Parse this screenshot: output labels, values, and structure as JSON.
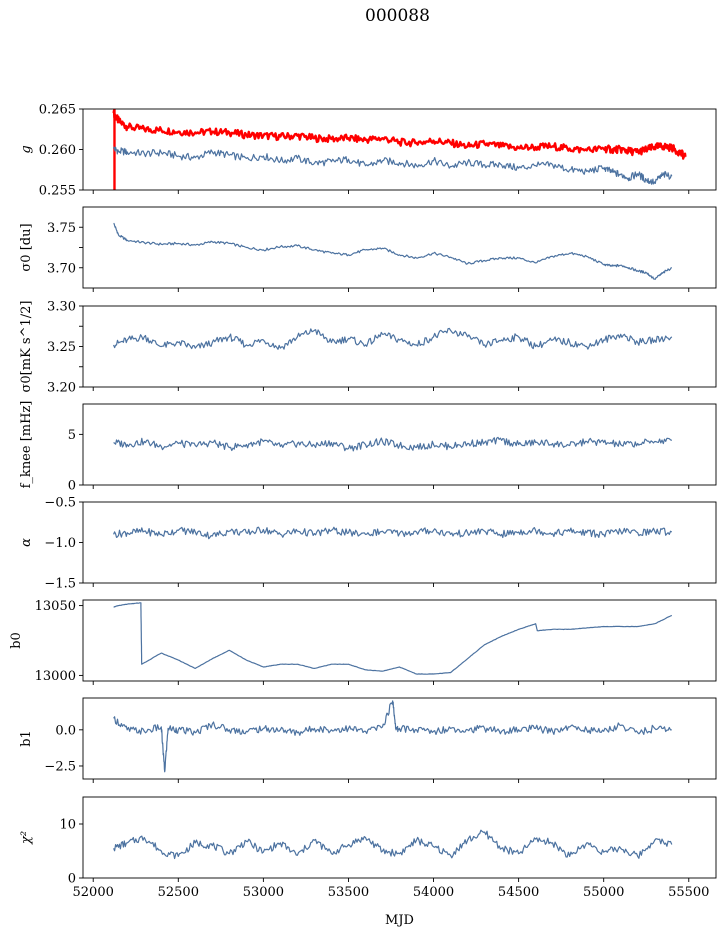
{
  "title": "000088",
  "colors": {
    "series": "#4c72a0",
    "highlight": "#ff0000",
    "axes": "#000000"
  },
  "chart_data": {
    "type": "line",
    "suptitle": "000088",
    "shared_x": {
      "label": "MJD",
      "lim": [
        51940,
        55660
      ],
      "ticks": [
        52000,
        52500,
        53000,
        53500,
        54000,
        54500,
        55000,
        55500
      ],
      "tick_labels": [
        "52000",
        "52500",
        "53000",
        "53500",
        "54000",
        "54500",
        "55000",
        "55500"
      ]
    },
    "panels": [
      {
        "id": "g",
        "ylabel": "g",
        "ylim": [
          0.255,
          0.265
        ],
        "yticks": [
          0.255,
          0.26,
          0.265
        ],
        "ytick_labels": [
          "0.255",
          "0.260",
          "0.265"
        ],
        "series": [
          {
            "color": "#ff0000",
            "x": [
              52120,
              52150,
              52200,
              52300,
              52400,
              52500,
              52600,
              52700,
              52800,
              52900,
              53000,
              53100,
              53200,
              53300,
              53400,
              53500,
              53600,
              53700,
              53800,
              53900,
              54000,
              54100,
              54200,
              54300,
              54400,
              54500,
              54600,
              54700,
              54800,
              54900,
              55000,
              55050,
              55100,
              55150,
              55200,
              55250,
              55300,
              55350,
              55400,
              55450,
              55480
            ],
            "y": [
              0.2645,
              0.2635,
              0.2628,
              0.2625,
              0.2624,
              0.2622,
              0.2621,
              0.2622,
              0.2621,
              0.2618,
              0.2617,
              0.2616,
              0.2617,
              0.2614,
              0.2613,
              0.2614,
              0.2612,
              0.2614,
              0.2609,
              0.2608,
              0.2611,
              0.2608,
              0.2604,
              0.2607,
              0.2604,
              0.2602,
              0.2603,
              0.2604,
              0.2601,
              0.2599,
              0.2601,
              0.26,
              0.26,
              0.2598,
              0.2597,
              0.26,
              0.2603,
              0.2604,
              0.2602,
              0.2596,
              0.2591
            ]
          },
          {
            "color": "#4c72a0",
            "x": [
              52120,
              52150,
              52200,
              52300,
              52400,
              52500,
              52600,
              52700,
              52800,
              52900,
              53000,
              53100,
              53200,
              53300,
              53400,
              53500,
              53600,
              53700,
              53800,
              53900,
              54000,
              54100,
              54200,
              54300,
              54400,
              54500,
              54600,
              54700,
              54800,
              54900,
              55000,
              55050,
              55100,
              55150,
              55200,
              55250,
              55300,
              55350,
              55400
            ],
            "y": [
              0.2601,
              0.2598,
              0.2597,
              0.2595,
              0.2596,
              0.2592,
              0.259,
              0.2597,
              0.2593,
              0.2589,
              0.2592,
              0.2586,
              0.2589,
              0.2583,
              0.2585,
              0.2588,
              0.258,
              0.2586,
              0.2584,
              0.258,
              0.2586,
              0.2579,
              0.2584,
              0.2581,
              0.2581,
              0.2577,
              0.258,
              0.2581,
              0.2575,
              0.2573,
              0.2577,
              0.2572,
              0.2569,
              0.2565,
              0.257,
              0.2562,
              0.256,
              0.2569,
              0.2567
            ]
          }
        ]
      },
      {
        "id": "sigma0_du",
        "ylabel": "σ0 [du]",
        "ylim": [
          3.675,
          3.775
        ],
        "yticks": [
          3.7,
          3.725,
          3.75
        ],
        "ytick_labels": [
          "3.70",
          "",
          "3.75"
        ],
        "series": [
          {
            "color": "#4c72a0",
            "x": [
              52120,
              52150,
              52200,
              52300,
              52400,
              52500,
              52600,
              52700,
              52800,
              52900,
              53000,
              53100,
              53200,
              53300,
              53400,
              53500,
              53600,
              53700,
              53800,
              53900,
              54000,
              54100,
              54200,
              54300,
              54400,
              54500,
              54600,
              54700,
              54800,
              54900,
              55000,
              55050,
              55100,
              55150,
              55200,
              55250,
              55300,
              55350,
              55400
            ],
            "y": [
              3.755,
              3.74,
              3.734,
              3.731,
              3.729,
              3.73,
              3.728,
              3.732,
              3.73,
              3.725,
              3.722,
              3.726,
              3.727,
              3.722,
              3.718,
              3.716,
              3.722,
              3.724,
              3.716,
              3.712,
              3.718,
              3.713,
              3.705,
              3.709,
              3.712,
              3.712,
              3.706,
              3.714,
              3.718,
              3.714,
              3.704,
              3.702,
              3.703,
              3.7,
              3.696,
              3.694,
              3.686,
              3.694,
              3.7
            ]
          }
        ]
      },
      {
        "id": "sigma0_mk",
        "ylabel": "σ0[mK s^1/2]",
        "ylim": [
          3.2,
          3.3
        ],
        "yticks": [
          3.2,
          3.225,
          3.25,
          3.275,
          3.3
        ],
        "ytick_labels": [
          "3.20",
          "",
          "3.25",
          "",
          "3.30"
        ],
        "series": [
          {
            "color": "#4c72a0",
            "x": [
              52120,
              52200,
              52300,
              52400,
              52500,
              52600,
              52700,
              52800,
              52900,
              53000,
              53100,
              53200,
              53300,
              53400,
              53500,
              53600,
              53700,
              53800,
              53900,
              54000,
              54100,
              54200,
              54300,
              54400,
              54500,
              54600,
              54700,
              54800,
              54900,
              55000,
              55100,
              55200,
              55300,
              55400
            ],
            "y": [
              3.252,
              3.258,
              3.262,
              3.25,
              3.255,
              3.248,
              3.255,
              3.262,
              3.252,
              3.258,
              3.248,
              3.262,
              3.27,
              3.255,
              3.26,
              3.252,
              3.265,
              3.258,
              3.252,
              3.262,
              3.27,
              3.262,
              3.252,
              3.258,
              3.262,
              3.25,
              3.258,
              3.255,
              3.25,
              3.258,
              3.265,
              3.255,
              3.258,
              3.262
            ]
          }
        ]
      },
      {
        "id": "fknee",
        "ylabel": "f_knee [mHz]",
        "ylim": [
          0,
          8
        ],
        "yticks": [
          0,
          5
        ],
        "ytick_labels": [
          "0",
          "5"
        ],
        "series": [
          {
            "color": "#4c72a0",
            "x": [
              52120,
              52200,
              52300,
              52400,
              52500,
              52600,
              52700,
              52800,
              52900,
              53000,
              53100,
              53200,
              53300,
              53400,
              53500,
              53600,
              53700,
              53800,
              53900,
              54000,
              54100,
              54200,
              54300,
              54400,
              54500,
              54600,
              54700,
              54800,
              54900,
              55000,
              55100,
              55200,
              55300,
              55400
            ],
            "y": [
              4.2,
              4.0,
              4.3,
              3.8,
              4.1,
              3.9,
              4.2,
              3.7,
              4.0,
              4.3,
              3.8,
              4.1,
              3.9,
              4.2,
              3.6,
              4.0,
              4.3,
              3.9,
              3.7,
              4.0,
              3.8,
              4.1,
              4.2,
              4.4,
              4.0,
              4.2,
              4.1,
              3.9,
              4.3,
              4.2,
              4.0,
              4.1,
              4.3,
              4.4
            ]
          }
        ]
      },
      {
        "id": "alpha",
        "ylabel": "α",
        "ylim": [
          -1.5,
          -0.5
        ],
        "yticks": [
          -1.5,
          -1.0,
          -0.5
        ],
        "ytick_labels": [
          "−1.5",
          "−1.0",
          "−0.5"
        ],
        "series": [
          {
            "color": "#4c72a0",
            "x": [
              52120,
              52200,
              52300,
              52400,
              52500,
              52600,
              52700,
              52800,
              52900,
              53000,
              53100,
              53200,
              53300,
              53400,
              53500,
              53600,
              53700,
              53800,
              53900,
              54000,
              54100,
              54200,
              54300,
              54400,
              54500,
              54600,
              54700,
              54800,
              54900,
              55000,
              55100,
              55200,
              55300,
              55400
            ],
            "y": [
              -0.9,
              -0.88,
              -0.86,
              -0.9,
              -0.85,
              -0.87,
              -0.92,
              -0.86,
              -0.88,
              -0.84,
              -0.9,
              -0.86,
              -0.89,
              -0.85,
              -0.88,
              -0.9,
              -0.86,
              -0.89,
              -0.87,
              -0.85,
              -0.9,
              -0.88,
              -0.86,
              -0.9,
              -0.87,
              -0.85,
              -0.89,
              -0.86,
              -0.88,
              -0.9,
              -0.86,
              -0.88,
              -0.86,
              -0.87
            ]
          }
        ]
      },
      {
        "id": "b0",
        "ylabel": "b0",
        "ylim": [
          12996,
          13054
        ],
        "yticks": [
          13000,
          13050
        ],
        "ytick_labels": [
          "13000",
          "13050"
        ],
        "series": [
          {
            "color": "#4c72a0",
            "x": [
              52120,
              52150,
              52200,
              52280,
              52285,
              52400,
              52500,
              52600,
              52700,
              52800,
              52900,
              53000,
              53100,
              53200,
              53300,
              53400,
              53500,
              53600,
              53700,
              53800,
              53900,
              54000,
              54100,
              54200,
              54300,
              54400,
              54500,
              54600,
              54610,
              54700,
              54800,
              54900,
              55000,
              55100,
              55200,
              55300,
              55400
            ],
            "y": [
              13049,
              13050,
              13051,
              13052,
              13008,
              13016,
              13011,
              13005,
              13012,
              13018,
              13011,
              13006,
              13008,
              13008,
              13005,
              13008,
              13008,
              13004,
              13003,
              13006,
              13001,
              13001,
              13002,
              13012,
              13022,
              13028,
              13033,
              13037,
              13032,
              13033,
              13033,
              13034,
              13035,
              13035,
              13035,
              13037,
              13043
            ]
          }
        ]
      },
      {
        "id": "b1",
        "ylabel": "b1",
        "ylim": [
          -3.4,
          2.2
        ],
        "yticks": [
          -2.5,
          0.0
        ],
        "ytick_labels": [
          "−2.5",
          "0.0"
        ],
        "series": [
          {
            "color": "#4c72a0",
            "x": [
              52120,
              52200,
              52300,
              52400,
              52420,
              52440,
              52500,
              52600,
              52700,
              52800,
              52900,
              53000,
              53100,
              53200,
              53300,
              53400,
              53500,
              53600,
              53700,
              53760,
              53780,
              53800,
              53900,
              54000,
              54100,
              54200,
              54300,
              54400,
              54500,
              54600,
              54700,
              54800,
              54900,
              55000,
              55100,
              55200,
              55300,
              55400
            ],
            "y": [
              0.8,
              0.0,
              -0.1,
              0.2,
              -2.9,
              0.1,
              0.0,
              -0.2,
              0.4,
              0.0,
              -0.1,
              0.1,
              0.0,
              -0.2,
              0.1,
              0.0,
              0.1,
              -0.1,
              0.2,
              2.0,
              0.0,
              0.1,
              0.0,
              -0.1,
              0.1,
              0.0,
              0.1,
              -0.1,
              0.0,
              0.1,
              -0.1,
              0.2,
              0.0,
              -0.1,
              0.3,
              -0.2,
              0.1,
              0.0
            ]
          }
        ]
      },
      {
        "id": "chi2",
        "ylabel": "χ²",
        "ylim": [
          0,
          15
        ],
        "yticks": [
          0,
          10
        ],
        "ytick_labels": [
          "0",
          "10"
        ],
        "series": [
          {
            "color": "#4c72a0",
            "x": [
              52120,
              52200,
              52300,
              52400,
              52500,
              52600,
              52700,
              52800,
              52900,
              53000,
              53100,
              53200,
              53300,
              53400,
              53500,
              53600,
              53700,
              53800,
              53900,
              54000,
              54100,
              54200,
              54300,
              54400,
              54500,
              54600,
              54700,
              54800,
              54900,
              55000,
              55100,
              55200,
              55300,
              55400
            ],
            "y": [
              5.5,
              6.5,
              7.5,
              5.0,
              4.0,
              6.5,
              6.0,
              4.5,
              6.8,
              4.8,
              6.5,
              4.2,
              7.0,
              4.5,
              6.2,
              7.5,
              5.0,
              4.5,
              7.0,
              5.8,
              4.2,
              7.0,
              8.5,
              5.5,
              4.5,
              7.2,
              6.5,
              4.0,
              6.5,
              4.8,
              5.5,
              4.0,
              7.0,
              6.2
            ]
          }
        ]
      }
    ]
  }
}
